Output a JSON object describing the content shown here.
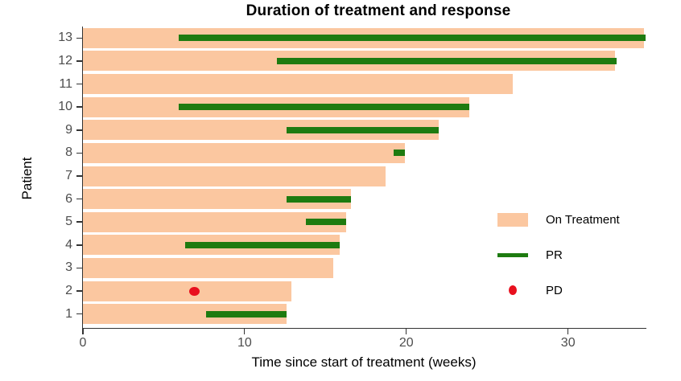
{
  "title": "Duration of treatment and response",
  "x_axis": {
    "label": "Time since start of treatment (weeks)",
    "ticks": [
      0,
      10,
      20,
      30
    ],
    "min": 0,
    "max": 34.8
  },
  "y_axis": {
    "label": "Patient"
  },
  "colors": {
    "on_treatment": "#fbc7a0",
    "pr": "#1e7b10",
    "pd": "#e8101e",
    "axis_line": "#333333",
    "tick_text": "#4d4d4d"
  },
  "legend": {
    "items": [
      {
        "label": "On Treatment",
        "type": "bar",
        "color": "#fbc7a0",
        "swatch_name": "on-treatment-swatch"
      },
      {
        "label": "PR",
        "type": "line",
        "color": "#1e7b10",
        "swatch_name": "pr-swatch"
      },
      {
        "label": "PD",
        "type": "dot",
        "color": "#e8101e",
        "swatch_name": "pd-swatch"
      }
    ]
  },
  "chart_data": {
    "type": "bar",
    "orientation": "horizontal",
    "title": "Duration of treatment and response",
    "xlabel": "Time since start of treatment (weeks)",
    "ylabel": "Patient",
    "xlim": [
      0,
      35
    ],
    "grid": false,
    "legend_position": "right-inside",
    "series_meaning": {
      "on_treatment_weeks": "length of peach bar from 0",
      "pr": "partial response interval [start,end] in weeks (green bar)",
      "pd": "progressive disease time point in weeks (red dot)"
    },
    "patients": [
      {
        "id": 13,
        "on_treatment": 34.7,
        "pr": [
          5.9,
          34.8
        ],
        "pd": null
      },
      {
        "id": 12,
        "on_treatment": 32.9,
        "pr": [
          12.0,
          33.0
        ],
        "pd": null
      },
      {
        "id": 11,
        "on_treatment": 26.6,
        "pr": null,
        "pd": null
      },
      {
        "id": 10,
        "on_treatment": 23.9,
        "pr": [
          5.9,
          23.9
        ],
        "pd": null
      },
      {
        "id": 9,
        "on_treatment": 22.0,
        "pr": [
          12.6,
          22.0
        ],
        "pd": null
      },
      {
        "id": 8,
        "on_treatment": 19.9,
        "pr": [
          19.2,
          19.9
        ],
        "pd": null
      },
      {
        "id": 7,
        "on_treatment": 18.7,
        "pr": null,
        "pd": null
      },
      {
        "id": 6,
        "on_treatment": 16.6,
        "pr": [
          12.6,
          16.6
        ],
        "pd": null
      },
      {
        "id": 5,
        "on_treatment": 16.3,
        "pr": [
          13.8,
          16.3
        ],
        "pd": null
      },
      {
        "id": 4,
        "on_treatment": 15.9,
        "pr": [
          6.3,
          15.9
        ],
        "pd": null
      },
      {
        "id": 3,
        "on_treatment": 15.5,
        "pr": null,
        "pd": null
      },
      {
        "id": 2,
        "on_treatment": 12.9,
        "pr": null,
        "pd": 6.9
      },
      {
        "id": 1,
        "on_treatment": 12.6,
        "pr": [
          7.6,
          12.6
        ],
        "pd": null
      }
    ]
  }
}
